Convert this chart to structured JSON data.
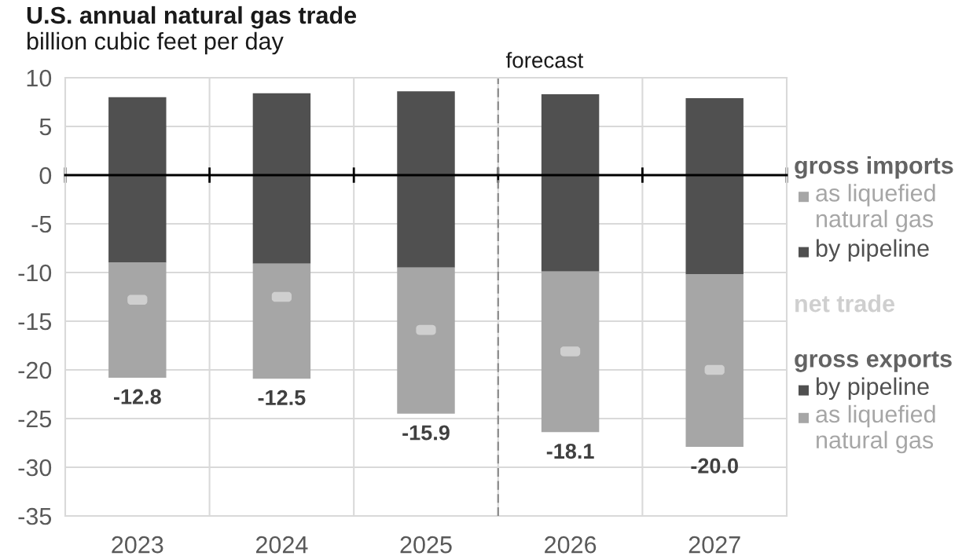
{
  "chart_data": {
    "type": "bar",
    "title": "U.S. annual natural gas trade",
    "subtitle": "billion cubic feet per day",
    "x": [
      2023,
      2024,
      2025,
      2026,
      2027
    ],
    "xlim": [
      2022.5,
      2027.5
    ],
    "xticks": [
      {
        "value": 2022.5,
        "label": null
      },
      2023,
      {
        "value": 2023.5,
        "label": null
      },
      2024,
      {
        "value": 2024.5,
        "label": null
      },
      2025,
      {
        "value": 2025.5,
        "label": null
      },
      2026,
      {
        "value": 2026.5,
        "label": null
      },
      2027,
      {
        "value": 2027.5,
        "label": null
      }
    ],
    "ylim": [
      -35,
      10
    ],
    "yticks": [
      -35,
      -30,
      -25,
      -20,
      -15,
      -10,
      -5,
      0,
      5,
      10
    ],
    "grid": true,
    "stacked": true,
    "legend": "right",
    "annotations": [
      "gross imports",
      "gross exports"
    ],
    "ref_lines": [
      {
        "axis": "x",
        "value": 2025.5,
        "label": "forecast",
        "color": "#8c8c8c",
        "line_style": "dashed"
      }
    ],
    "totals": [
      "-12.8",
      "-12.5",
      "-15.9",
      "-18.1",
      "-20.0"
    ],
    "series": [
      {
        "name": "as liquefied natural gas",
        "color": "#a6a6a6",
        "values": [
          null,
          null,
          null,
          null,
          null
        ]
      },
      {
        "name": "by pipeline",
        "color": "#505050",
        "values": [
          8.0,
          8.4,
          8.6,
          8.3,
          7.9
        ]
      },
      {
        "name": "net trade",
        "type": "scatter",
        "color": "#cfcfcf",
        "values": [
          -12.8,
          -12.5,
          -15.9,
          -18.1,
          -20.0
        ]
      },
      {
        "name": "by pipeline",
        "color": "#505050",
        "values": [
          -9.0,
          -9.1,
          -9.5,
          -9.9,
          -10.2
        ]
      },
      {
        "name": "as liquefied natural gas",
        "color": "#a6a6a6",
        "values": [
          -11.8,
          -11.8,
          -15.0,
          -16.5,
          -17.7
        ]
      }
    ]
  }
}
